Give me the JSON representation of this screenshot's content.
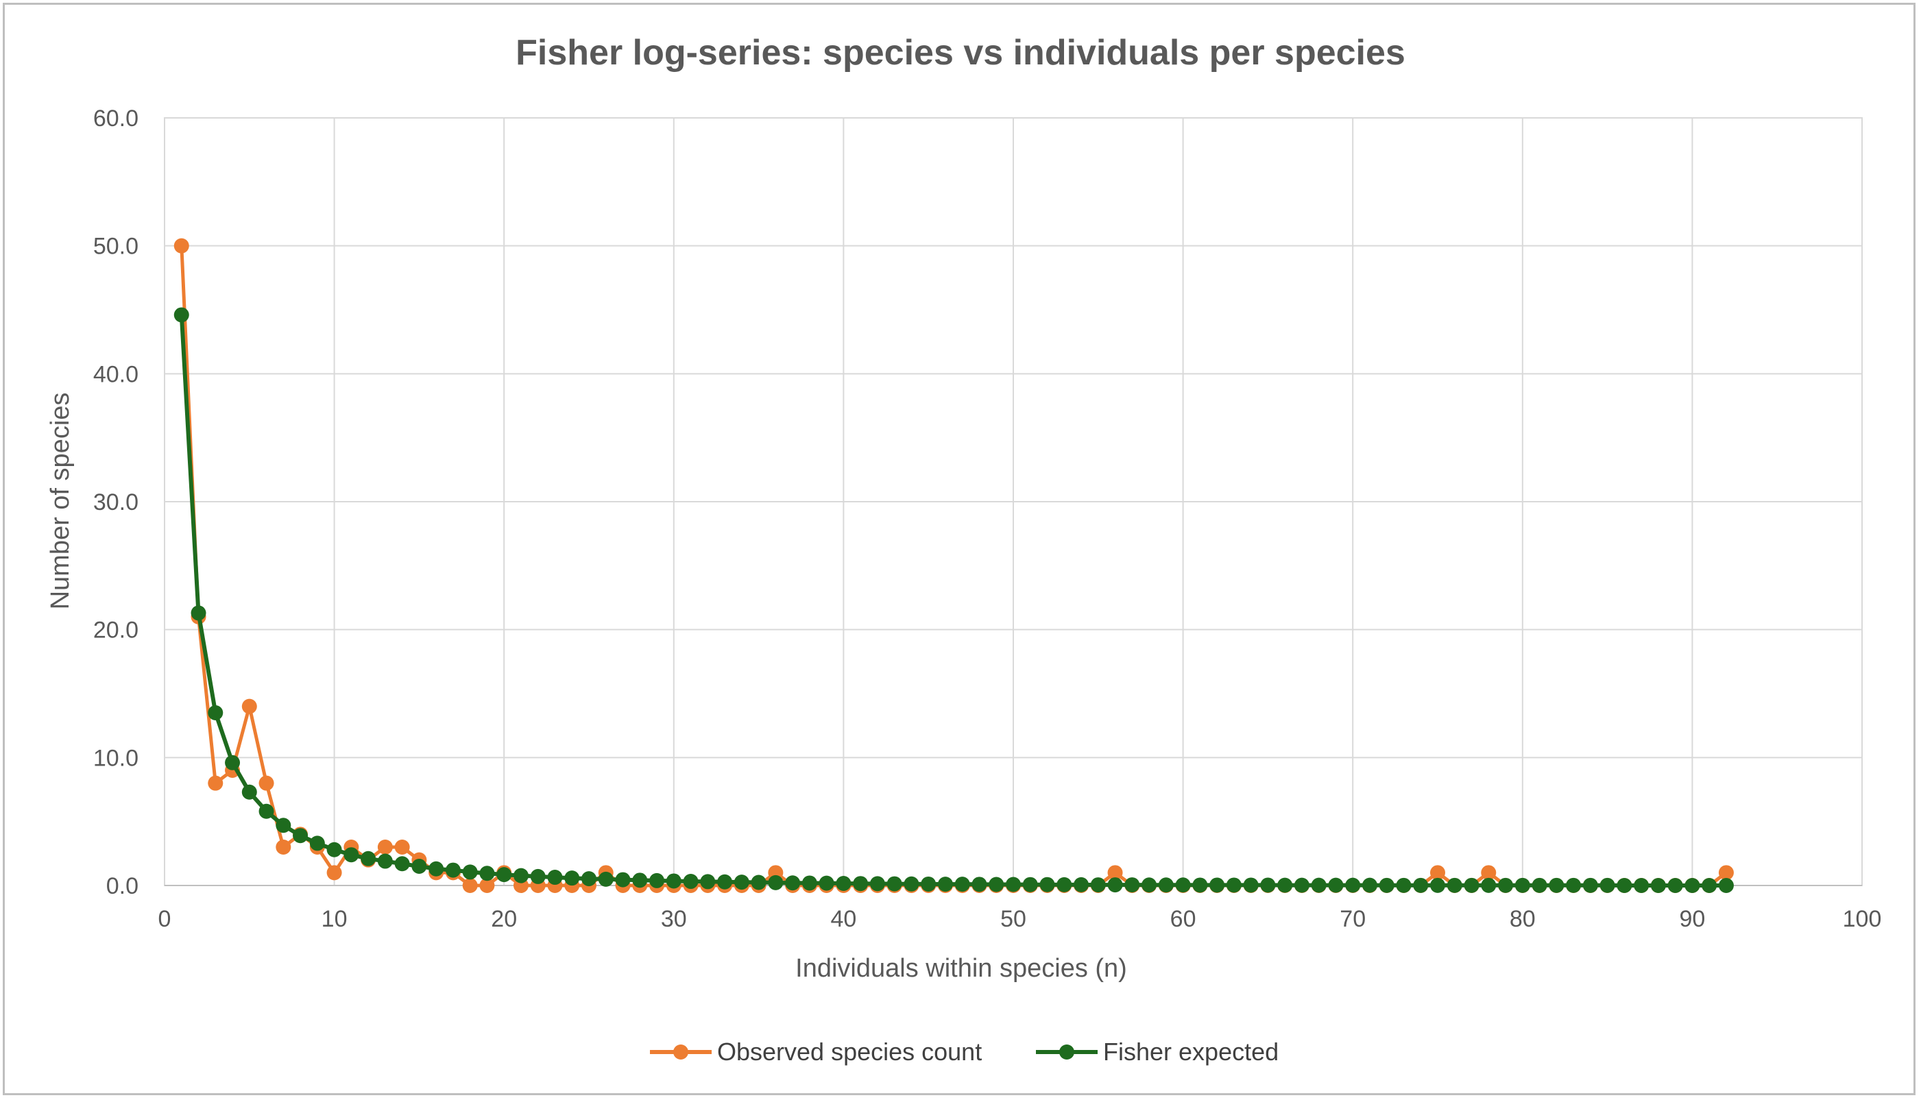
{
  "chart_data": {
    "type": "scatter",
    "title": "Fisher log-series: species vs individuals per species",
    "xlabel": "Individuals within species (n)",
    "ylabel": "Number of species",
    "xlim": [
      0,
      100
    ],
    "ylim": [
      0,
      60
    ],
    "x_ticks": [
      "0",
      "10",
      "20",
      "30",
      "40",
      "50",
      "60",
      "70",
      "80",
      "90",
      "100"
    ],
    "y_ticks": [
      "0.0",
      "10.0",
      "20.0",
      "30.0",
      "40.0",
      "50.0",
      "60.0"
    ],
    "grid": true,
    "legend_position": "bottom",
    "series": [
      {
        "name": "Observed species count",
        "color": "#ED7D31",
        "marker": "circle",
        "line": true,
        "x": [
          1,
          2,
          3,
          4,
          5,
          6,
          7,
          8,
          9,
          10,
          11,
          12,
          13,
          14,
          15,
          16,
          17,
          18,
          19,
          20,
          21,
          22,
          23,
          24,
          25,
          26,
          27,
          28,
          29,
          30,
          31,
          32,
          33,
          34,
          35,
          36,
          37,
          38,
          39,
          40,
          41,
          42,
          43,
          44,
          45,
          46,
          47,
          48,
          49,
          50,
          51,
          52,
          53,
          54,
          55,
          56,
          57,
          58,
          59,
          60,
          61,
          62,
          63,
          64,
          65,
          66,
          67,
          68,
          69,
          70,
          71,
          72,
          73,
          74,
          75,
          76,
          77,
          78,
          79,
          80,
          81,
          82,
          83,
          84,
          85,
          86,
          87,
          88,
          89,
          90,
          91,
          92
        ],
        "y": [
          50,
          21,
          8,
          9,
          14,
          8,
          3,
          4,
          3,
          1,
          3,
          2,
          3,
          3,
          2,
          1,
          1,
          0,
          0,
          1,
          0,
          0,
          0,
          0,
          0,
          1,
          0,
          0,
          0,
          0,
          0,
          0,
          0,
          0,
          0,
          1,
          0,
          0,
          0,
          0,
          0,
          0,
          0,
          0,
          0,
          0,
          0,
          0,
          0,
          0,
          0,
          0,
          0,
          0,
          0,
          1,
          0,
          0,
          0,
          0,
          0,
          0,
          0,
          0,
          0,
          0,
          0,
          0,
          0,
          0,
          0,
          0,
          0,
          0,
          1,
          0,
          0,
          1,
          0,
          0,
          0,
          0,
          0,
          0,
          0,
          0,
          0,
          0,
          0,
          0,
          0,
          1
        ]
      },
      {
        "name": "Fisher expected",
        "color": "#1E6B1E",
        "marker": "circle",
        "line": true,
        "x": [
          1,
          2,
          3,
          4,
          5,
          6,
          7,
          8,
          9,
          10,
          11,
          12,
          13,
          14,
          15,
          16,
          17,
          18,
          19,
          20,
          21,
          22,
          23,
          24,
          25,
          26,
          27,
          28,
          29,
          30,
          31,
          32,
          33,
          34,
          35,
          36,
          37,
          38,
          39,
          40,
          41,
          42,
          43,
          44,
          45,
          46,
          47,
          48,
          49,
          50,
          51,
          52,
          53,
          54,
          55,
          56,
          57,
          58,
          59,
          60,
          61,
          62,
          63,
          64,
          65,
          66,
          67,
          68,
          69,
          70,
          71,
          72,
          73,
          74,
          75,
          76,
          77,
          78,
          79,
          80,
          81,
          82,
          83,
          84,
          85,
          86,
          87,
          88,
          89,
          90,
          91,
          92
        ],
        "y": [
          44.6,
          21.3,
          13.5,
          9.6,
          7.3,
          5.8,
          4.7,
          3.9,
          3.3,
          2.8,
          2.4,
          2.1,
          1.9,
          1.7,
          1.5,
          1.3,
          1.2,
          1.05,
          0.95,
          0.85,
          0.77,
          0.7,
          0.64,
          0.58,
          0.53,
          0.49,
          0.45,
          0.41,
          0.38,
          0.35,
          0.32,
          0.3,
          0.28,
          0.26,
          0.24,
          0.22,
          0.2,
          0.19,
          0.18,
          0.16,
          0.15,
          0.14,
          0.13,
          0.12,
          0.11,
          0.1,
          0.1,
          0.09,
          0.08,
          0.08,
          0.07,
          0.07,
          0.06,
          0.06,
          0.05,
          0.05,
          0.05,
          0.04,
          0.04,
          0.04,
          0.03,
          0.03,
          0.03,
          0.03,
          0.03,
          0.02,
          0.02,
          0.02,
          0.02,
          0.02,
          0.02,
          0.01,
          0.01,
          0.01,
          0.01,
          0.01,
          0.01,
          0.01,
          0.01,
          0.01,
          0.01,
          0.01,
          0.01,
          0.01,
          0.01,
          0.0,
          0.0,
          0.0,
          0.0,
          0.0,
          0.0,
          0.0
        ]
      }
    ]
  }
}
